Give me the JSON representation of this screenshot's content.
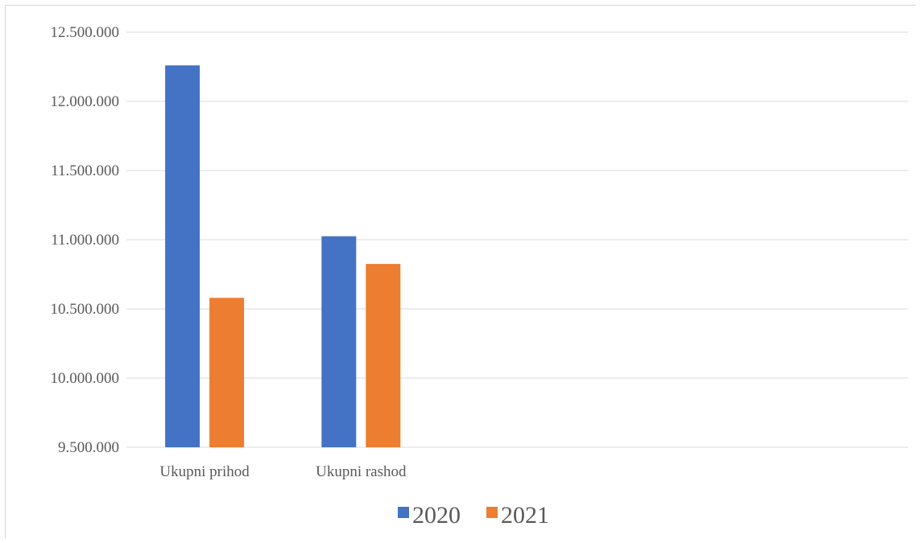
{
  "chart_data": {
    "type": "bar",
    "categories": [
      "Ukupni prihod",
      "Ukupni rashod",
      "",
      "",
      ""
    ],
    "series": [
      {
        "name": "2020",
        "color": "#4472c4",
        "values": [
          12260000,
          11025000,
          null,
          null,
          null
        ]
      },
      {
        "name": "2021",
        "color": "#ed7d31",
        "values": [
          10580000,
          10825000,
          null,
          null,
          null
        ]
      }
    ],
    "ylim": [
      9500000,
      12500000
    ],
    "yticks": [
      9500000,
      10000000,
      10500000,
      11000000,
      11500000,
      12000000,
      12500000
    ],
    "ytick_labels": [
      "9.500.000",
      "10.000.000",
      "10.500.000",
      "11.000.000",
      "11.500.000",
      "12.000.000",
      "12.500.000"
    ],
    "grid": true,
    "legend_position": "bottom",
    "gridline_color": "#d9d9d9"
  }
}
